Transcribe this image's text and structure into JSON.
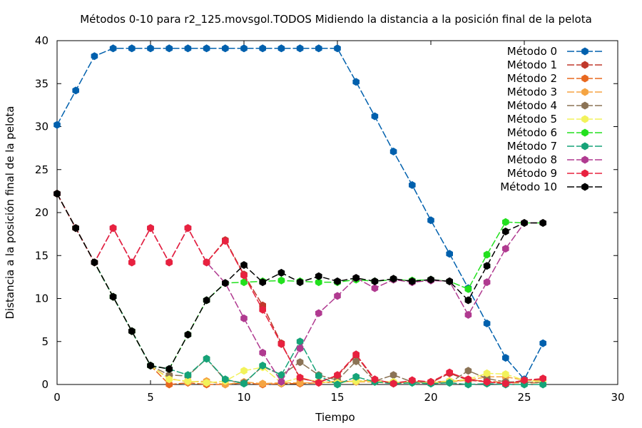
{
  "chart_data": {
    "type": "line",
    "title": "Métodos 0-10 para r2_125.movsgol.TODOS Midiendo la distancia a la posición final de la pelota",
    "xlabel": "Tiempo",
    "ylabel": "Distancia a la posición final de la pelota",
    "xlim": [
      0,
      30
    ],
    "ylim": [
      0,
      40
    ],
    "xticks": [
      0,
      5,
      10,
      15,
      20,
      25,
      30
    ],
    "yticks": [
      0,
      5,
      10,
      15,
      20,
      25,
      30,
      35,
      40
    ],
    "grid": false,
    "legend_position": "top-right",
    "x": [
      0,
      1,
      2,
      3,
      4,
      5,
      6,
      7,
      8,
      9,
      10,
      11,
      12,
      13,
      14,
      15,
      16,
      17,
      18,
      19,
      20,
      21,
      22,
      23,
      24,
      25,
      26
    ],
    "series": [
      {
        "name": "Método 0",
        "color": "#0060ad",
        "values": [
          30.2,
          34.2,
          38.2,
          39.1,
          39.1,
          39.1,
          39.1,
          39.1,
          39.1,
          39.1,
          39.1,
          39.1,
          39.1,
          39.1,
          39.1,
          39.1,
          35.2,
          31.2,
          27.1,
          23.2,
          19.1,
          15.2,
          11.2,
          7.1,
          3.1,
          0.6,
          4.8
        ]
      },
      {
        "name": "Método 1",
        "color": "#c0392b",
        "values": [
          22.2,
          18.2,
          14.2,
          18.2,
          14.2,
          18.2,
          14.2,
          18.2,
          14.2,
          16.8,
          12.8,
          9.2,
          4.8,
          0.7,
          0.3,
          1.0,
          3.4,
          0.5,
          0.2,
          0.4,
          0.2,
          1.3,
          0.5,
          0.3,
          0.1,
          0.5,
          0.6
        ]
      },
      {
        "name": "Método 2",
        "color": "#e8681f",
        "values": [
          22.2,
          18.2,
          14.2,
          10.2,
          6.2,
          2.2,
          0.0,
          0.2,
          0.0,
          0.0,
          0.2,
          0.0,
          0.1,
          0.1,
          0.2,
          0.3,
          0.4,
          0.5,
          0.2,
          0.3,
          0.3,
          0.4,
          0.5,
          0.4,
          0.2,
          0.2,
          0.2
        ]
      },
      {
        "name": "Método 3",
        "color": "#f5a442",
        "values": [
          22.2,
          18.2,
          14.2,
          10.2,
          6.2,
          2.2,
          0.7,
          0.3,
          0.4,
          0.0,
          0.3,
          0.1,
          0.2,
          0.2,
          0.2,
          0.4,
          0.3,
          0.3,
          0.1,
          0.3,
          0.2,
          0.3,
          0.5,
          0.9,
          0.9,
          0.5,
          0.4
        ]
      },
      {
        "name": "Método 4",
        "color": "#8b7355",
        "values": [
          22.2,
          18.2,
          14.2,
          10.2,
          6.2,
          2.2,
          1.1,
          1.0,
          3.0,
          0.5,
          0.2,
          2.1,
          1.1,
          2.6,
          1.1,
          0.5,
          2.7,
          0.4,
          1.1,
          0.3,
          0.2,
          0.2,
          1.6,
          0.7,
          0.3,
          0.3,
          0.2
        ]
      },
      {
        "name": "Método 5",
        "color": "#f2f25a",
        "values": [
          22.2,
          18.2,
          14.2,
          10.2,
          6.2,
          2.2,
          0.6,
          0.4,
          0.2,
          0.4,
          1.6,
          2.0,
          0.2,
          0.8,
          0.3,
          0.2,
          0.4,
          0.4,
          0.3,
          0.2,
          0.2,
          0.4,
          0.6,
          1.3,
          1.2,
          0.5,
          0.3
        ]
      },
      {
        "name": "Método 6",
        "color": "#22e01e",
        "values": [
          22.2,
          18.2,
          14.2,
          10.2,
          6.2,
          2.2,
          1.8,
          5.8,
          9.8,
          11.8,
          11.9,
          12.0,
          12.1,
          12.0,
          11.9,
          11.9,
          12.2,
          12.0,
          12.2,
          12.1,
          12.2,
          12.0,
          11.1,
          15.1,
          18.9,
          18.8,
          18.8
        ]
      },
      {
        "name": "Método 7",
        "color": "#15a378",
        "values": [
          22.2,
          18.2,
          14.2,
          10.2,
          6.2,
          2.2,
          1.8,
          1.1,
          3.0,
          0.6,
          0.1,
          2.2,
          1.1,
          5.0,
          1.0,
          0.0,
          0.9,
          0.3,
          0.1,
          0.2,
          0.1,
          0.2,
          0.0,
          0.1,
          0.0,
          0.0,
          0.0
        ]
      },
      {
        "name": "Método 8",
        "color": "#b03a90",
        "values": [
          22.2,
          18.2,
          14.2,
          18.2,
          14.2,
          18.2,
          14.2,
          18.2,
          14.2,
          11.8,
          7.7,
          3.7,
          0.3,
          4.2,
          8.3,
          10.3,
          12.4,
          11.2,
          12.2,
          11.9,
          12.1,
          12.0,
          8.1,
          11.9,
          15.8,
          18.8,
          18.8
        ]
      },
      {
        "name": "Método 9",
        "color": "#e8213f",
        "values": [
          22.2,
          18.2,
          14.2,
          18.2,
          14.2,
          18.2,
          14.2,
          18.2,
          14.2,
          16.7,
          12.7,
          8.7,
          4.7,
          0.8,
          0.2,
          1.1,
          3.5,
          0.6,
          0.1,
          0.5,
          0.3,
          1.4,
          0.6,
          0.3,
          0.1,
          0.5,
          0.7
        ]
      },
      {
        "name": "Método 10",
        "color": "#000000",
        "values": [
          22.2,
          18.2,
          14.2,
          10.2,
          6.2,
          2.2,
          1.8,
          5.8,
          9.8,
          11.8,
          13.9,
          11.9,
          13.0,
          11.9,
          12.6,
          12.0,
          12.4,
          12.0,
          12.3,
          12.0,
          12.2,
          12.0,
          9.8,
          13.8,
          17.8,
          18.8,
          18.8
        ]
      }
    ]
  }
}
